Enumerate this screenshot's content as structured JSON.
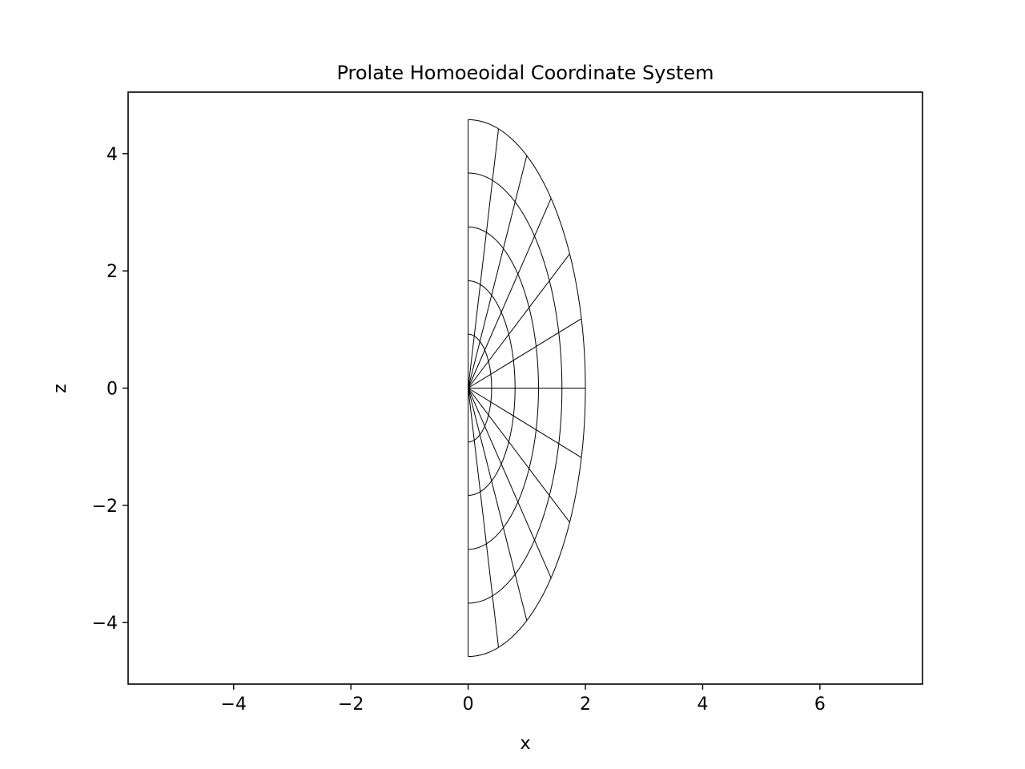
{
  "chart_data": {
    "type": "line",
    "title": "Prolate Homoeoidal Coordinate System",
    "xlabel": "x",
    "ylabel": "z",
    "xlim": [
      -5.8,
      7.75
    ],
    "ylim": [
      -5.05,
      5.05
    ],
    "xticks": [
      -4,
      -2,
      0,
      2,
      4,
      6
    ],
    "yticks": [
      -4,
      -2,
      0,
      2,
      4
    ],
    "xtick_labels": [
      "−4",
      "−2",
      "0",
      "2",
      "4",
      "6"
    ],
    "ytick_labels": [
      "−4",
      "−2",
      "0",
      "2",
      "4"
    ],
    "grid": false,
    "line_color": "#000000",
    "shells": {
      "description_of_family": "nested half-ellipses x = a·sinθ, z = c·cosθ, θ from 0 to π",
      "semi_axes": [
        {
          "a": 0.4,
          "c": 0.92
        },
        {
          "a": 0.8,
          "c": 1.83
        },
        {
          "a": 1.2,
          "c": 2.75
        },
        {
          "a": 1.6,
          "c": 3.67
        },
        {
          "a": 2.0,
          "c": 4.58
        }
      ]
    },
    "rays": {
      "outer_a": 2.0,
      "outer_c": 4.58,
      "angles_deg": [
        0,
        15,
        30,
        45,
        60,
        75,
        90,
        105,
        120,
        135,
        150,
        165,
        180
      ]
    }
  }
}
